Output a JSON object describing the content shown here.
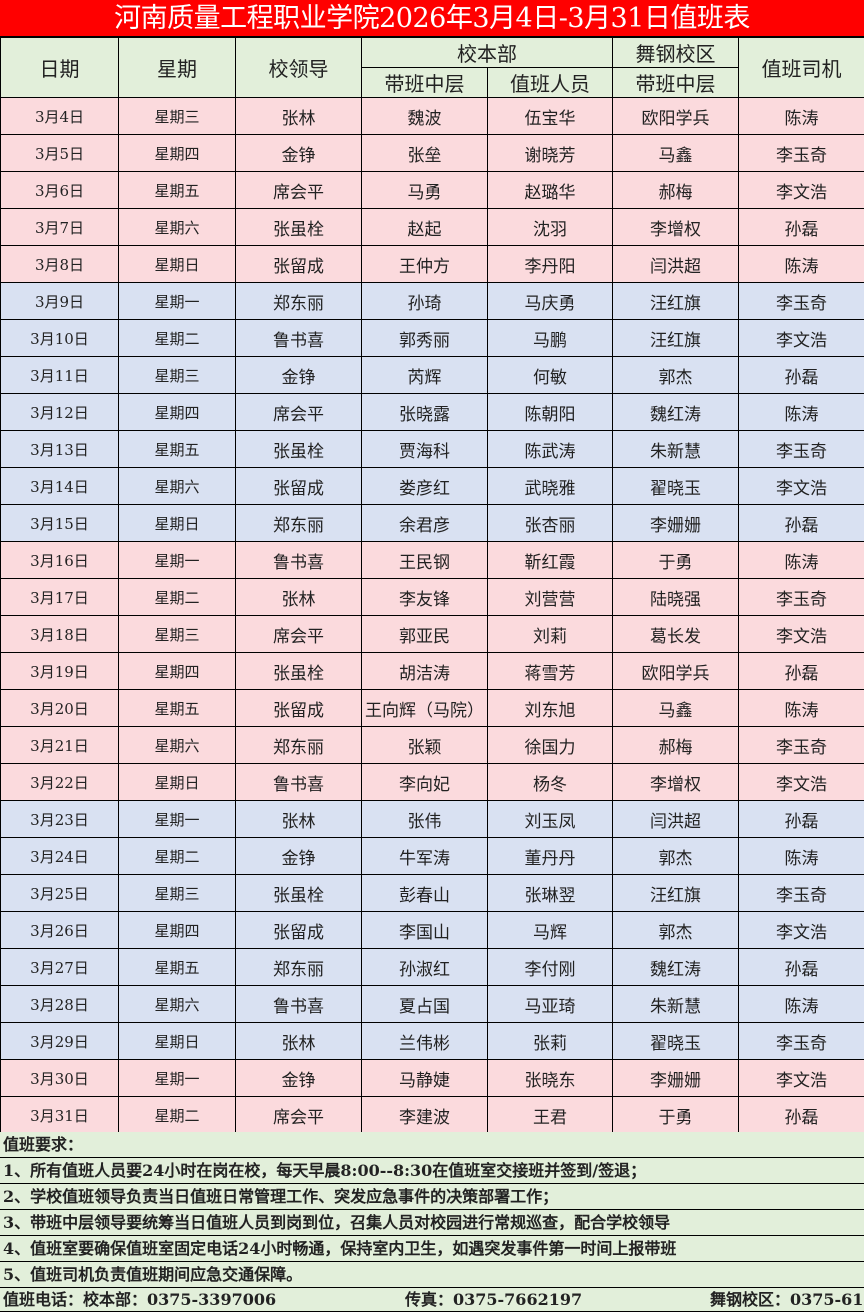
{
  "title": "河南质量工程职业学院2026年3月4日-3月31日值班表",
  "header": {
    "date": "日期",
    "weekday": "星期",
    "leader": "校领导",
    "main_campus": "校本部",
    "wugang_campus": "舞钢校区",
    "driver": "值班司机",
    "main_mid": "带班中层",
    "main_staff": "值班人员",
    "wugang_mid": "带班中层"
  },
  "colors": {
    "title_bg": "#ff0000",
    "header_bg": "#e2efda",
    "pink": "#fbdadd",
    "blue": "#d9e1f2"
  },
  "rows": [
    {
      "date": "3月4日",
      "weekday": "星期三",
      "leader": "张林",
      "main_mid": "魏波",
      "main_staff": "伍宝华",
      "wugang_mid": "欧阳学兵",
      "driver": "陈涛",
      "band": "pink"
    },
    {
      "date": "3月5日",
      "weekday": "星期四",
      "leader": "金铮",
      "main_mid": "张垒",
      "main_staff": "谢晓芳",
      "wugang_mid": "马鑫",
      "driver": "李玉奇",
      "band": "pink"
    },
    {
      "date": "3月6日",
      "weekday": "星期五",
      "leader": "席会平",
      "main_mid": "马勇",
      "main_staff": "赵璐华",
      "wugang_mid": "郝梅",
      "driver": "李文浩",
      "band": "pink"
    },
    {
      "date": "3月7日",
      "weekday": "星期六",
      "leader": "张虽栓",
      "main_mid": "赵起",
      "main_staff": "沈羽",
      "wugang_mid": "李增权",
      "driver": "孙磊",
      "band": "pink"
    },
    {
      "date": "3月8日",
      "weekday": "星期日",
      "leader": "张留成",
      "main_mid": "王仲方",
      "main_staff": "李丹阳",
      "wugang_mid": "闫洪超",
      "driver": "陈涛",
      "band": "pink"
    },
    {
      "date": "3月9日",
      "weekday": "星期一",
      "leader": "郑东丽",
      "main_mid": "孙琦",
      "main_staff": "马庆勇",
      "wugang_mid": "汪红旗",
      "driver": "李玉奇",
      "band": "blue"
    },
    {
      "date": "3月10日",
      "weekday": "星期二",
      "leader": "鲁书喜",
      "main_mid": "郭秀丽",
      "main_staff": "马鹏",
      "wugang_mid": "汪红旗",
      "driver": "李文浩",
      "band": "blue"
    },
    {
      "date": "3月11日",
      "weekday": "星期三",
      "leader": "金铮",
      "main_mid": "芮辉",
      "main_staff": "何敏",
      "wugang_mid": "郭杰",
      "driver": "孙磊",
      "band": "blue"
    },
    {
      "date": "3月12日",
      "weekday": "星期四",
      "leader": "席会平",
      "main_mid": "张晓露",
      "main_staff": "陈朝阳",
      "wugang_mid": "魏红涛",
      "driver": "陈涛",
      "band": "blue"
    },
    {
      "date": "3月13日",
      "weekday": "星期五",
      "leader": "张虽栓",
      "main_mid": "贾海科",
      "main_staff": "陈武涛",
      "wugang_mid": "朱新慧",
      "driver": "李玉奇",
      "band": "blue"
    },
    {
      "date": "3月14日",
      "weekday": "星期六",
      "leader": "张留成",
      "main_mid": "娄彦红",
      "main_staff": "武晓雅",
      "wugang_mid": "翟晓玉",
      "driver": "李文浩",
      "band": "blue"
    },
    {
      "date": "3月15日",
      "weekday": "星期日",
      "leader": "郑东丽",
      "main_mid": "余君彦",
      "main_staff": "张杏丽",
      "wugang_mid": "李姗姗",
      "driver": "孙磊",
      "band": "blue"
    },
    {
      "date": "3月16日",
      "weekday": "星期一",
      "leader": "鲁书喜",
      "main_mid": "王民钢",
      "main_staff": "靳红霞",
      "wugang_mid": "于勇",
      "driver": "陈涛",
      "band": "pink"
    },
    {
      "date": "3月17日",
      "weekday": "星期二",
      "leader": "张林",
      "main_mid": "李友锋",
      "main_staff": "刘营营",
      "wugang_mid": "陆晓强",
      "driver": "李玉奇",
      "band": "pink"
    },
    {
      "date": "3月18日",
      "weekday": "星期三",
      "leader": "席会平",
      "main_mid": "郭亚民",
      "main_staff": "刘莉",
      "wugang_mid": "葛长发",
      "driver": "李文浩",
      "band": "pink"
    },
    {
      "date": "3月19日",
      "weekday": "星期四",
      "leader": "张虽栓",
      "main_mid": "胡洁涛",
      "main_staff": "蒋雪芳",
      "wugang_mid": "欧阳学兵",
      "driver": "孙磊",
      "band": "pink"
    },
    {
      "date": "3月20日",
      "weekday": "星期五",
      "leader": "张留成",
      "main_mid": "王向辉（马院）",
      "main_staff": "刘东旭",
      "wugang_mid": "马鑫",
      "driver": "陈涛",
      "band": "pink"
    },
    {
      "date": "3月21日",
      "weekday": "星期六",
      "leader": "郑东丽",
      "main_mid": "张颖",
      "main_staff": "徐国力",
      "wugang_mid": "郝梅",
      "driver": "李玉奇",
      "band": "pink"
    },
    {
      "date": "3月22日",
      "weekday": "星期日",
      "leader": "鲁书喜",
      "main_mid": "李向妃",
      "main_staff": "杨冬",
      "wugang_mid": "李增权",
      "driver": "李文浩",
      "band": "pink"
    },
    {
      "date": "3月23日",
      "weekday": "星期一",
      "leader": "张林",
      "main_mid": "张伟",
      "main_staff": "刘玉凤",
      "wugang_mid": "闫洪超",
      "driver": "孙磊",
      "band": "blue"
    },
    {
      "date": "3月24日",
      "weekday": "星期二",
      "leader": "金铮",
      "main_mid": "牛军涛",
      "main_staff": "董丹丹",
      "wugang_mid": "郭杰",
      "driver": "陈涛",
      "band": "blue"
    },
    {
      "date": "3月25日",
      "weekday": "星期三",
      "leader": "张虽栓",
      "main_mid": "彭春山",
      "main_staff": "张琳翌",
      "wugang_mid": "汪红旗",
      "driver": "李玉奇",
      "band": "blue"
    },
    {
      "date": "3月26日",
      "weekday": "星期四",
      "leader": "张留成",
      "main_mid": "李国山",
      "main_staff": "马辉",
      "wugang_mid": "郭杰",
      "driver": "李文浩",
      "band": "blue"
    },
    {
      "date": "3月27日",
      "weekday": "星期五",
      "leader": "郑东丽",
      "main_mid": "孙淑红",
      "main_staff": "李付刚",
      "wugang_mid": "魏红涛",
      "driver": "孙磊",
      "band": "blue"
    },
    {
      "date": "3月28日",
      "weekday": "星期六",
      "leader": "鲁书喜",
      "main_mid": "夏占国",
      "main_staff": "马亚琦",
      "wugang_mid": "朱新慧",
      "driver": "陈涛",
      "band": "blue"
    },
    {
      "date": "3月29日",
      "weekday": "星期日",
      "leader": "张林",
      "main_mid": "兰伟彬",
      "main_staff": "张莉",
      "wugang_mid": "翟晓玉",
      "driver": "李玉奇",
      "band": "blue"
    },
    {
      "date": "3月30日",
      "weekday": "星期一",
      "leader": "金铮",
      "main_mid": "马静婕",
      "main_staff": "张晓东",
      "wugang_mid": "李姗姗",
      "driver": "李文浩",
      "band": "pink"
    },
    {
      "date": "3月31日",
      "weekday": "星期二",
      "leader": "席会平",
      "main_mid": "李建波",
      "main_staff": "王君",
      "wugang_mid": "于勇",
      "driver": "孙磊",
      "band": "pink"
    }
  ],
  "requirements": {
    "heading": "值班要求：",
    "items": [
      "1、所有值班人员要24小时在岗在校，每天早晨8:00--8:30在值班室交接班并签到/签退；",
      "2、学校值班领导负责当日值班日常管理工作、突发应急事件的决策部署工作；",
      "3、带班中层领导要统筹当日值班人员到岗到位，召集人员对校园进行常规巡查，配合学校领导",
      "4、值班室要确保值班室固定电话24小时畅通，保持室内卫生，如遇突发事件第一时间上报带班",
      "5、值班司机负责值班期间应急交通保障。"
    ]
  },
  "contact": {
    "main": "值班电话：校本部：0375-3397006",
    "fax": "传真：0375-7662197",
    "wugang": "舞钢校区：0375-61"
  }
}
